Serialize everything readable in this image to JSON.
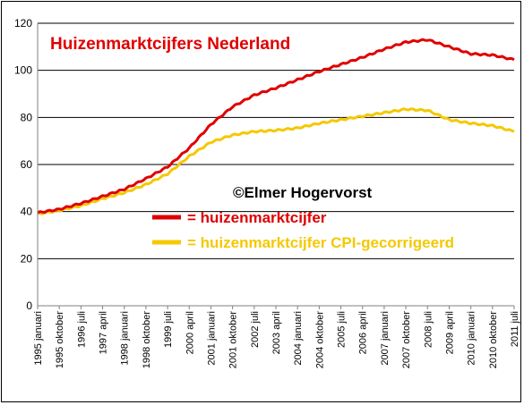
{
  "chart_data": {
    "type": "line",
    "title": "Huizenmarktcijfers Nederland",
    "copyright": "©Elmer Hogervorst",
    "ylim": [
      0,
      120
    ],
    "yticks": [
      0,
      20,
      40,
      60,
      80,
      100,
      120
    ],
    "grid": true,
    "legend_position": "center-left, inside plot",
    "x_tick_labels": [
      "1995 januari",
      "1995 oktober",
      "1996 juli",
      "1997 april",
      "1998 januari",
      "1998 oktober",
      "1999 juli",
      "2000 april",
      "2001 januari",
      "2001 oktober",
      "2002 juli",
      "2003 april",
      "2004 januari",
      "2004 oktober",
      "2005 juli",
      "2006 april",
      "2007 januari",
      "2007 oktober",
      "2008 juli",
      "2009 april",
      "2010 januari",
      "2010 oktober",
      "2011 juli"
    ],
    "series": [
      {
        "name": "= huizenmarktcijfer",
        "color": "#e00000",
        "values": [
          39.5,
          41,
          43.5,
          46.5,
          49.5,
          54,
          59,
          67,
          77,
          84.5,
          89.5,
          92.5,
          96,
          99.5,
          102.5,
          105.5,
          109,
          112,
          113,
          110,
          107,
          106.5,
          104.5
        ]
      },
      {
        "name": "= huizenmarktcijfer CPI-gecorrigeerd",
        "color": "#f5c800",
        "values": [
          39,
          40.5,
          42.5,
          45.5,
          48,
          51.5,
          56,
          63.5,
          69.5,
          72.5,
          74,
          74.5,
          75.5,
          77.5,
          79,
          80.5,
          82,
          83.5,
          83,
          79,
          77.5,
          76.5,
          74
        ]
      }
    ]
  }
}
